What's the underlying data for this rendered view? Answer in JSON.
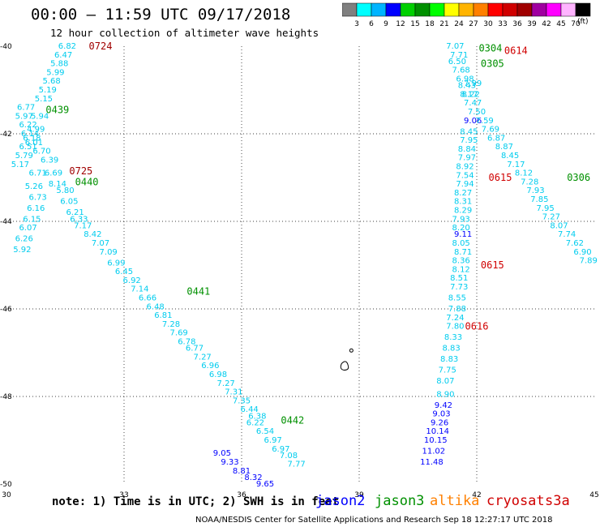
{
  "title": "00:00 — 11:59 UTC 09/17/2018",
  "subtitle": "12 hour collection of altimeter wave heights",
  "note": "note: 1) Time is in UTC; 2) SWH is in feet",
  "credit": "NOAA/NESDIS Center for Satellite Applications and Research   Sep 18 12:27:17 UTC 2018",
  "colorbar": {
    "unit_label": "(ft)",
    "colors": [
      "#808080",
      "#00ffff",
      "#00b4ff",
      "#0000ff",
      "#00d000",
      "#009000",
      "#00ff00",
      "#ffff00",
      "#ffb400",
      "#ff8000",
      "#ff0000",
      "#d00000",
      "#a00000",
      "#a000a0",
      "#ff00ff",
      "#ffb4ff",
      "#000000"
    ],
    "tick_labels": [
      "3",
      "6",
      "9",
      "12",
      "15",
      "18",
      "21",
      "24",
      "27",
      "30",
      "33",
      "36",
      "39",
      "42",
      "45",
      "70"
    ]
  },
  "satellites": [
    {
      "name": "jason2",
      "color": "#0000ff"
    },
    {
      "name": "jason3",
      "color": "#009000"
    },
    {
      "name": "altika",
      "color": "#ff8000"
    },
    {
      "name": "cryosat",
      "color": "#d00000"
    },
    {
      "name": "s3a",
      "color": "#d00000"
    }
  ],
  "chart_data": {
    "type": "scatter",
    "title": "00:00 — 11:59 UTC 09/17/2018",
    "subtitle": "12 hour collection of altimeter wave heights",
    "xlim": [
      30,
      45
    ],
    "ylim": [
      -50,
      -40
    ],
    "x_ticks": [
      30,
      33,
      36,
      39,
      42,
      45
    ],
    "y_ticks": [
      -40,
      -42,
      -44,
      -46,
      -48,
      -50
    ],
    "grid": true,
    "tracks": [
      {
        "satellite": "jason2",
        "points": [
          [
            35.5,
            -49.3,
            "9.05",
            "#0000ff"
          ],
          [
            35.7,
            -49.5,
            "9.33",
            "#0000ff"
          ],
          [
            36.0,
            -49.7,
            "8.81",
            "#0000ff"
          ],
          [
            36.3,
            -49.85,
            "8.32",
            "#0000ff"
          ],
          [
            36.6,
            -50.0,
            "9.65",
            "#0000ff"
          ],
          [
            41.15,
            -48.2,
            "9.42",
            "#0000ff"
          ],
          [
            41.1,
            -48.4,
            "9.03",
            "#0000ff"
          ],
          [
            41.05,
            -48.6,
            "9.26",
            "#0000ff"
          ],
          [
            41.0,
            -48.8,
            "10.14",
            "#0000ff"
          ],
          [
            40.95,
            -49.0,
            "10.15",
            "#0000ff"
          ],
          [
            40.9,
            -49.25,
            "11.02",
            "#0000ff"
          ],
          [
            40.85,
            -49.5,
            "11.48",
            "#0000ff"
          ],
          [
            41.9,
            -41.7,
            "9.06",
            "#0000ff"
          ],
          [
            41.65,
            -44.3,
            "9.11",
            "#0000ff"
          ]
        ]
      },
      {
        "satellite": "altika",
        "points": [
          [
            31.55,
            -40.0,
            "6.82",
            "#00ccee"
          ],
          [
            31.45,
            -40.2,
            "6.47",
            "#00ccee"
          ],
          [
            31.35,
            -40.4,
            "5.88",
            "#00ccee"
          ],
          [
            31.25,
            -40.6,
            "5.99",
            "#00ccee"
          ],
          [
            31.15,
            -40.8,
            "5.68",
            "#00ccee"
          ],
          [
            31.05,
            -41.0,
            "5.19",
            "#00ccee"
          ],
          [
            30.95,
            -41.2,
            "5.15",
            "#00ccee"
          ],
          [
            30.85,
            -41.6,
            "5.94",
            "#00ccee"
          ],
          [
            30.75,
            -41.9,
            "4.99",
            "#00ccee"
          ],
          [
            30.65,
            -42.1,
            "6.18",
            "#00ccee"
          ],
          [
            30.55,
            -42.3,
            "6.51",
            "#00ccee"
          ],
          [
            30.45,
            -42.5,
            "5.79",
            "#00ccee"
          ],
          [
            30.35,
            -42.7,
            "5.17",
            "#00ccee"
          ],
          [
            30.5,
            -41.4,
            "6.77",
            "#00ccee"
          ],
          [
            30.45,
            -41.6,
            "5.97",
            "#00ccee"
          ],
          [
            30.55,
            -41.8,
            "6.22",
            "#00ccee"
          ],
          [
            30.6,
            -42.0,
            "6.14",
            "#00ccee"
          ],
          [
            30.7,
            -42.2,
            "6.01",
            "#00ccee"
          ],
          [
            30.9,
            -42.4,
            "6.70",
            "#00ccee"
          ],
          [
            31.1,
            -42.6,
            "6.39",
            "#00ccee"
          ],
          [
            30.8,
            -42.9,
            "6.71",
            "#00ccee"
          ],
          [
            31.2,
            -42.9,
            "6.69",
            "#00ccee"
          ],
          [
            30.7,
            -43.2,
            "5.26",
            "#00ccee"
          ],
          [
            31.3,
            -43.15,
            "8.14",
            "#00ccee"
          ],
          [
            30.8,
            -43.45,
            "6.73",
            "#00ccee"
          ],
          [
            31.5,
            -43.3,
            "5.80",
            "#00ccee"
          ],
          [
            31.6,
            -43.55,
            "6.05",
            "#00ccee"
          ],
          [
            30.75,
            -43.7,
            "6.16",
            "#00ccee"
          ],
          [
            31.75,
            -43.8,
            "6.21",
            "#00ccee"
          ],
          [
            30.65,
            -43.95,
            "6.15",
            "#00ccee"
          ],
          [
            31.85,
            -43.95,
            "6.33",
            "#00ccee"
          ],
          [
            30.55,
            -44.15,
            "6.07",
            "#00ccee"
          ],
          [
            31.95,
            -44.1,
            "7.17",
            "#00ccee"
          ],
          [
            30.45,
            -44.4,
            "6.26",
            "#00ccee"
          ],
          [
            32.2,
            -44.3,
            "8.42",
            "#00ccee"
          ],
          [
            30.4,
            -44.65,
            "5.92",
            "#00ccee"
          ],
          [
            32.4,
            -44.5,
            "7.07",
            "#00ccee"
          ],
          [
            32.6,
            -44.7,
            "7.09",
            "#00ccee"
          ],
          [
            32.8,
            -44.95,
            "6.99",
            "#00ccee"
          ],
          [
            33.0,
            -45.15,
            "6.45",
            "#00ccee"
          ],
          [
            33.2,
            -45.35,
            "6.92",
            "#00ccee"
          ],
          [
            33.4,
            -45.55,
            "7.14",
            "#00ccee"
          ],
          [
            33.6,
            -45.75,
            "6.66",
            "#00ccee"
          ],
          [
            33.8,
            -45.95,
            "6.48",
            "#00ccee"
          ],
          [
            34.0,
            -46.15,
            "6.81",
            "#00ccee"
          ],
          [
            34.2,
            -46.35,
            "7.28",
            "#00ccee"
          ],
          [
            34.4,
            -46.55,
            "7.69",
            "#00ccee"
          ],
          [
            34.6,
            -46.75,
            "6.78",
            "#00ccee"
          ],
          [
            34.8,
            -46.9,
            "6.77",
            "#00ccee"
          ],
          [
            35.0,
            -47.1,
            "7.27",
            "#00ccee"
          ],
          [
            35.2,
            -47.3,
            "6.96",
            "#00ccee"
          ],
          [
            35.4,
            -47.5,
            "6.98",
            "#00ccee"
          ],
          [
            35.6,
            -47.7,
            "7.27",
            "#00ccee"
          ],
          [
            35.8,
            -47.9,
            "7.31",
            "#00ccee"
          ],
          [
            36.0,
            -48.1,
            "7.35",
            "#00ccee"
          ],
          [
            36.2,
            -48.3,
            "6.44",
            "#00ccee"
          ],
          [
            36.4,
            -48.45,
            "6.38",
            "#00ccee"
          ],
          [
            36.35,
            -48.6,
            "6.22",
            "#00ccee"
          ],
          [
            36.6,
            -48.8,
            "6.54",
            "#00ccee"
          ],
          [
            36.8,
            -49.0,
            "6.97",
            "#00ccee"
          ],
          [
            37.0,
            -49.2,
            "6.97",
            "#00ccee"
          ],
          [
            37.2,
            -49.35,
            "7.08",
            "#00ccee"
          ],
          [
            37.4,
            -49.55,
            "7.77",
            "#00ccee"
          ],
          [
            41.45,
            -40.0,
            "7.07",
            "#00ccee"
          ],
          [
            41.55,
            -40.2,
            "7.71",
            "#00ccee"
          ],
          [
            41.5,
            -40.35,
            "6.50",
            "#00ccee"
          ],
          [
            41.6,
            -40.55,
            "7.68",
            "#00ccee"
          ],
          [
            41.7,
            -40.75,
            "6.98",
            "#00ccee"
          ],
          [
            41.75,
            -40.9,
            "8.43",
            "#00ccee"
          ],
          [
            41.8,
            -41.1,
            "8.17",
            "#00ccee"
          ],
          [
            41.9,
            -41.3,
            "7.47",
            "#00ccee"
          ],
          [
            42.0,
            -41.5,
            "7.50",
            "#00ccee"
          ],
          [
            42.2,
            -41.7,
            "7.59",
            "#00ccee"
          ],
          [
            42.35,
            -41.9,
            "7.69",
            "#00ccee"
          ],
          [
            42.5,
            -42.1,
            "6.87",
            "#00ccee"
          ],
          [
            42.7,
            -42.3,
            "8.87",
            "#00ccee"
          ],
          [
            42.85,
            -42.5,
            "8.45",
            "#00ccee"
          ],
          [
            43.0,
            -42.7,
            "7.17",
            "#00ccee"
          ],
          [
            43.2,
            -42.9,
            "8.12",
            "#00ccee"
          ],
          [
            43.35,
            -43.1,
            "7.28",
            "#00ccee"
          ],
          [
            43.5,
            -43.3,
            "7.93",
            "#00ccee"
          ],
          [
            43.6,
            -43.5,
            "7.85",
            "#00ccee"
          ],
          [
            43.75,
            -43.7,
            "7.95",
            "#00ccee"
          ],
          [
            43.9,
            -43.9,
            "7.27",
            "#00ccee"
          ],
          [
            44.1,
            -44.1,
            "8.07",
            "#00ccee"
          ],
          [
            44.3,
            -44.3,
            "7.74",
            "#00ccee"
          ],
          [
            44.5,
            -44.5,
            "7.62",
            "#00ccee"
          ],
          [
            44.7,
            -44.7,
            "6.90",
            "#00ccee"
          ],
          [
            44.85,
            -44.9,
            "7.89",
            "#00ccee"
          ],
          [
            41.9,
            -40.85,
            "7.99",
            "#00ccee"
          ],
          [
            41.85,
            -41.1,
            "8.22",
            "#00ccee"
          ],
          [
            41.8,
            -41.95,
            "8.45",
            "#00ccee"
          ],
          [
            41.8,
            -42.15,
            "7.95",
            "#00ccee"
          ],
          [
            41.75,
            -42.35,
            "8.84",
            "#00ccee"
          ],
          [
            41.75,
            -42.55,
            "7.97",
            "#00ccee"
          ],
          [
            41.7,
            -42.75,
            "8.92",
            "#00ccee"
          ],
          [
            41.7,
            -42.95,
            "7.54",
            "#00ccee"
          ],
          [
            41.7,
            -43.15,
            "7.94",
            "#00ccee"
          ],
          [
            41.65,
            -43.35,
            "8.27",
            "#00ccee"
          ],
          [
            41.65,
            -43.55,
            "8.31",
            "#00ccee"
          ],
          [
            41.65,
            -43.75,
            "8.29",
            "#00ccee"
          ],
          [
            41.6,
            -43.95,
            "7.93",
            "#00ccee"
          ],
          [
            41.6,
            -44.15,
            "8.20",
            "#00ccee"
          ],
          [
            41.6,
            -44.5,
            "8.05",
            "#00ccee"
          ],
          [
            41.65,
            -44.7,
            "8.71",
            "#00ccee"
          ],
          [
            41.6,
            -44.9,
            "8.36",
            "#00ccee"
          ],
          [
            41.6,
            -45.1,
            "8.12",
            "#00ccee"
          ],
          [
            41.55,
            -45.3,
            "8.51",
            "#00ccee"
          ],
          [
            41.55,
            -45.5,
            "7.73",
            "#00ccee"
          ],
          [
            41.5,
            -45.75,
            "8.55",
            "#00ccee"
          ],
          [
            41.5,
            -46.0,
            "7.88",
            "#00ccee"
          ],
          [
            41.45,
            -46.2,
            "7.24",
            "#00ccee"
          ],
          [
            41.45,
            -46.4,
            "7.80",
            "#00ccee"
          ],
          [
            41.4,
            -46.65,
            "8.33",
            "#00ccee"
          ],
          [
            41.35,
            -46.9,
            "8.83",
            "#00ccee"
          ],
          [
            41.3,
            -47.15,
            "8.83",
            "#00ccee"
          ],
          [
            41.25,
            -47.4,
            "7.75",
            "#00ccee"
          ],
          [
            41.2,
            -47.65,
            "8.07",
            "#00ccee"
          ],
          [
            41.2,
            -47.95,
            "8.90",
            "#00ccee"
          ]
        ]
      }
    ],
    "time_labels": [
      {
        "x": 32.4,
        "y": -40.0,
        "text": "0724",
        "color": "#a00000"
      },
      {
        "x": 31.3,
        "y": -41.45,
        "text": "0439",
        "color": "#009000"
      },
      {
        "x": 31.9,
        "y": -42.85,
        "text": "0725",
        "color": "#a00000"
      },
      {
        "x": 32.05,
        "y": -43.1,
        "text": "0440",
        "color": "#009000"
      },
      {
        "x": 34.9,
        "y": -45.6,
        "text": "0441",
        "color": "#009000"
      },
      {
        "x": 37.3,
        "y": -48.55,
        "text": "0442",
        "color": "#009000"
      },
      {
        "x": 42.35,
        "y": -40.05,
        "text": "0304",
        "color": "#009000"
      },
      {
        "x": 43.0,
        "y": -40.1,
        "text": "0614",
        "color": "#d00000"
      },
      {
        "x": 42.4,
        "y": -40.4,
        "text": "0305",
        "color": "#009000"
      },
      {
        "x": 42.6,
        "y": -43.0,
        "text": "0615",
        "color": "#d00000"
      },
      {
        "x": 44.6,
        "y": -43.0,
        "text": "0306",
        "color": "#009000"
      },
      {
        "x": 42.4,
        "y": -45.0,
        "text": "0615",
        "color": "#d00000"
      },
      {
        "x": 42.0,
        "y": -46.4,
        "text": "0616",
        "color": "#d00000"
      }
    ]
  }
}
